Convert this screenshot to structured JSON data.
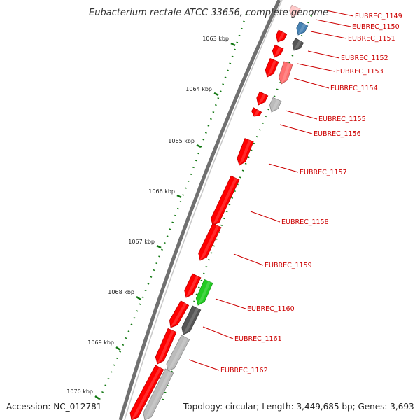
{
  "title": "Eubacterium rectale ATCC 33656, complete genome",
  "footer": {
    "accession": "Accession: NC_012781",
    "topology": "Topology: circular; Length: 3,449,685 bp; Genes: 3,693"
  },
  "ticks": [
    "1063 kbp",
    "1064 kbp",
    "1065 kbp",
    "1066 kbp",
    "1067 kbp",
    "1068 kbp",
    "1069 kbp",
    "1070 kbp"
  ],
  "genes": [
    {
      "name": "EUBREC_1149",
      "color": "#ffc8c8"
    },
    {
      "name": "EUBREC_1150",
      "color": "#4682b4"
    },
    {
      "name": "EUBREC_1151",
      "color": "#555555"
    },
    {
      "name": "EUBREC_1152",
      "color": "#ff0000"
    },
    {
      "name": "EUBREC_1153",
      "color": "#ff7070"
    },
    {
      "name": "EUBREC_1154",
      "color": "#ff0000"
    },
    {
      "name": "EUBREC_1155",
      "color": "#bbbbbb"
    },
    {
      "name": "EUBREC_1156",
      "color": "#ff0000"
    },
    {
      "name": "EUBREC_1157",
      "color": "#ff0000"
    },
    {
      "name": "EUBREC_1158",
      "color": "#ff0000"
    },
    {
      "name": "EUBREC_1159",
      "color": "#ff0000"
    },
    {
      "name": "EUBREC_1160",
      "color": "#22cc22"
    },
    {
      "name": "EUBREC_1161",
      "color": "#555555"
    },
    {
      "name": "EUBREC_1162",
      "color": "#bbbbbb"
    }
  ]
}
